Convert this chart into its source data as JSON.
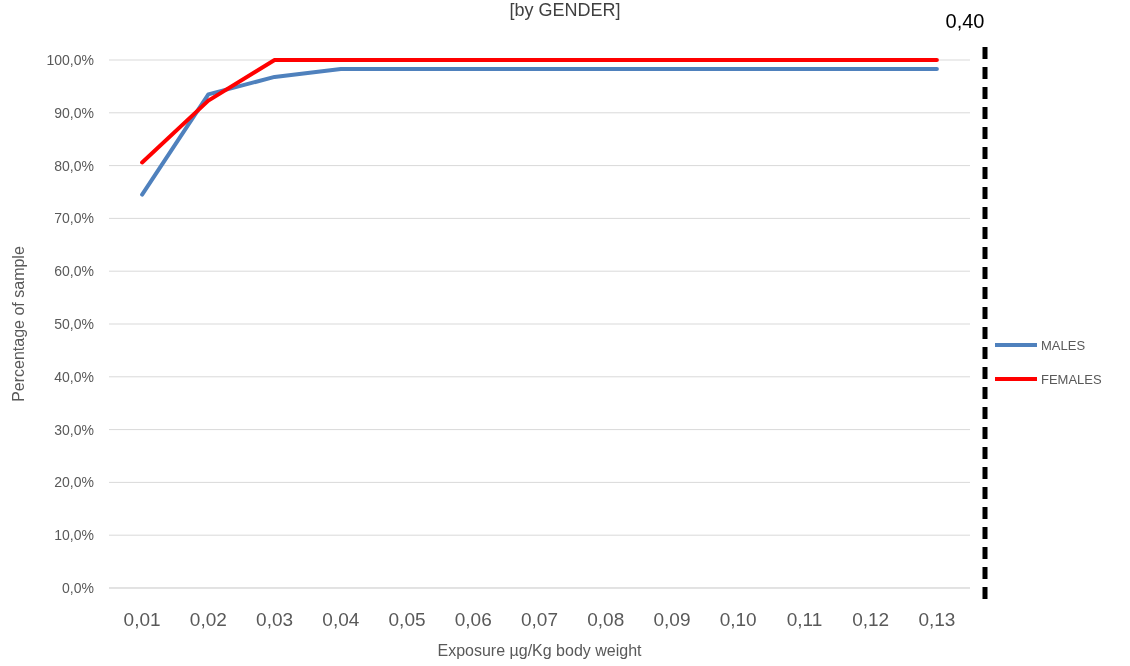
{
  "chart_data": {
    "type": "line",
    "title": "[by GENDER]",
    "xlabel": "Exposure µg/Kg body weight",
    "ylabel": "Percentage of sample",
    "categories": [
      "0,01",
      "0,02",
      "0,03",
      "0,04",
      "0,05",
      "0,06",
      "0,07",
      "0,08",
      "0,09",
      "0,10",
      "0,11",
      "0,12",
      "0,13"
    ],
    "series": [
      {
        "name": "MALES",
        "color": "#4f81bd",
        "values": [
          74.5,
          93.5,
          96.8,
          98.3,
          98.3,
          98.3,
          98.3,
          98.3,
          98.3,
          98.3,
          98.3,
          98.3,
          98.3
        ]
      },
      {
        "name": "FEMALES",
        "color": "#ff0000",
        "values": [
          80.6,
          92.3,
          100,
          100,
          100,
          100,
          100,
          100,
          100,
          100,
          100,
          100,
          100
        ]
      }
    ],
    "ylim": [
      0,
      100
    ],
    "yticks": [
      {
        "value": 0,
        "label": "0,0%"
      },
      {
        "value": 10,
        "label": "10,0%"
      },
      {
        "value": 20,
        "label": "20,0%"
      },
      {
        "value": 30,
        "label": "30,0%"
      },
      {
        "value": 40,
        "label": "40,0%"
      },
      {
        "value": 50,
        "label": "50,0%"
      },
      {
        "value": 60,
        "label": "60,0%"
      },
      {
        "value": 70,
        "label": "70,0%"
      },
      {
        "value": 80,
        "label": "80,0%"
      },
      {
        "value": 90,
        "label": "90,0%"
      },
      {
        "value": 100,
        "label": "100,0%"
      }
    ],
    "annotations": [
      "0,40"
    ],
    "grid": "y",
    "legend": "right",
    "line_style": "solid",
    "marker": "none"
  }
}
